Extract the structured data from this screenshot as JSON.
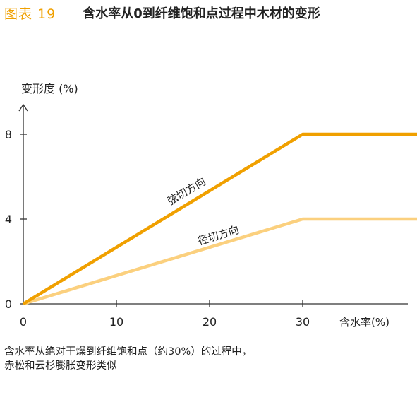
{
  "header": {
    "figure_label": "图表 19",
    "title": "含水率从0到纤维饱和点过程中木材的变形"
  },
  "chart_data": {
    "type": "line",
    "title": "含水率从0到纤维饱和点过程中木材的变形",
    "xlabel": "含水率(%)",
    "ylabel": "变形度 (%)",
    "xlim": [
      0,
      48
    ],
    "ylim": [
      0,
      10.5
    ],
    "x_ticks": [
      0,
      10,
      20,
      30
    ],
    "y_ticks": [
      0,
      4,
      8
    ],
    "grid": false,
    "series": [
      {
        "name": "弦切方向",
        "x": [
          0,
          30,
          48
        ],
        "y": [
          0,
          8,
          8
        ],
        "color": "#f0a000"
      },
      {
        "name": "径切方向",
        "x": [
          0,
          30,
          48
        ],
        "y": [
          0,
          4,
          4
        ],
        "color": "#fbd07e"
      }
    ]
  },
  "caption": {
    "line1": "含水率从绝对干燥到纤维饱和点（约30%）的过程中，",
    "line2": "赤松和云杉膨胀变形类似"
  }
}
